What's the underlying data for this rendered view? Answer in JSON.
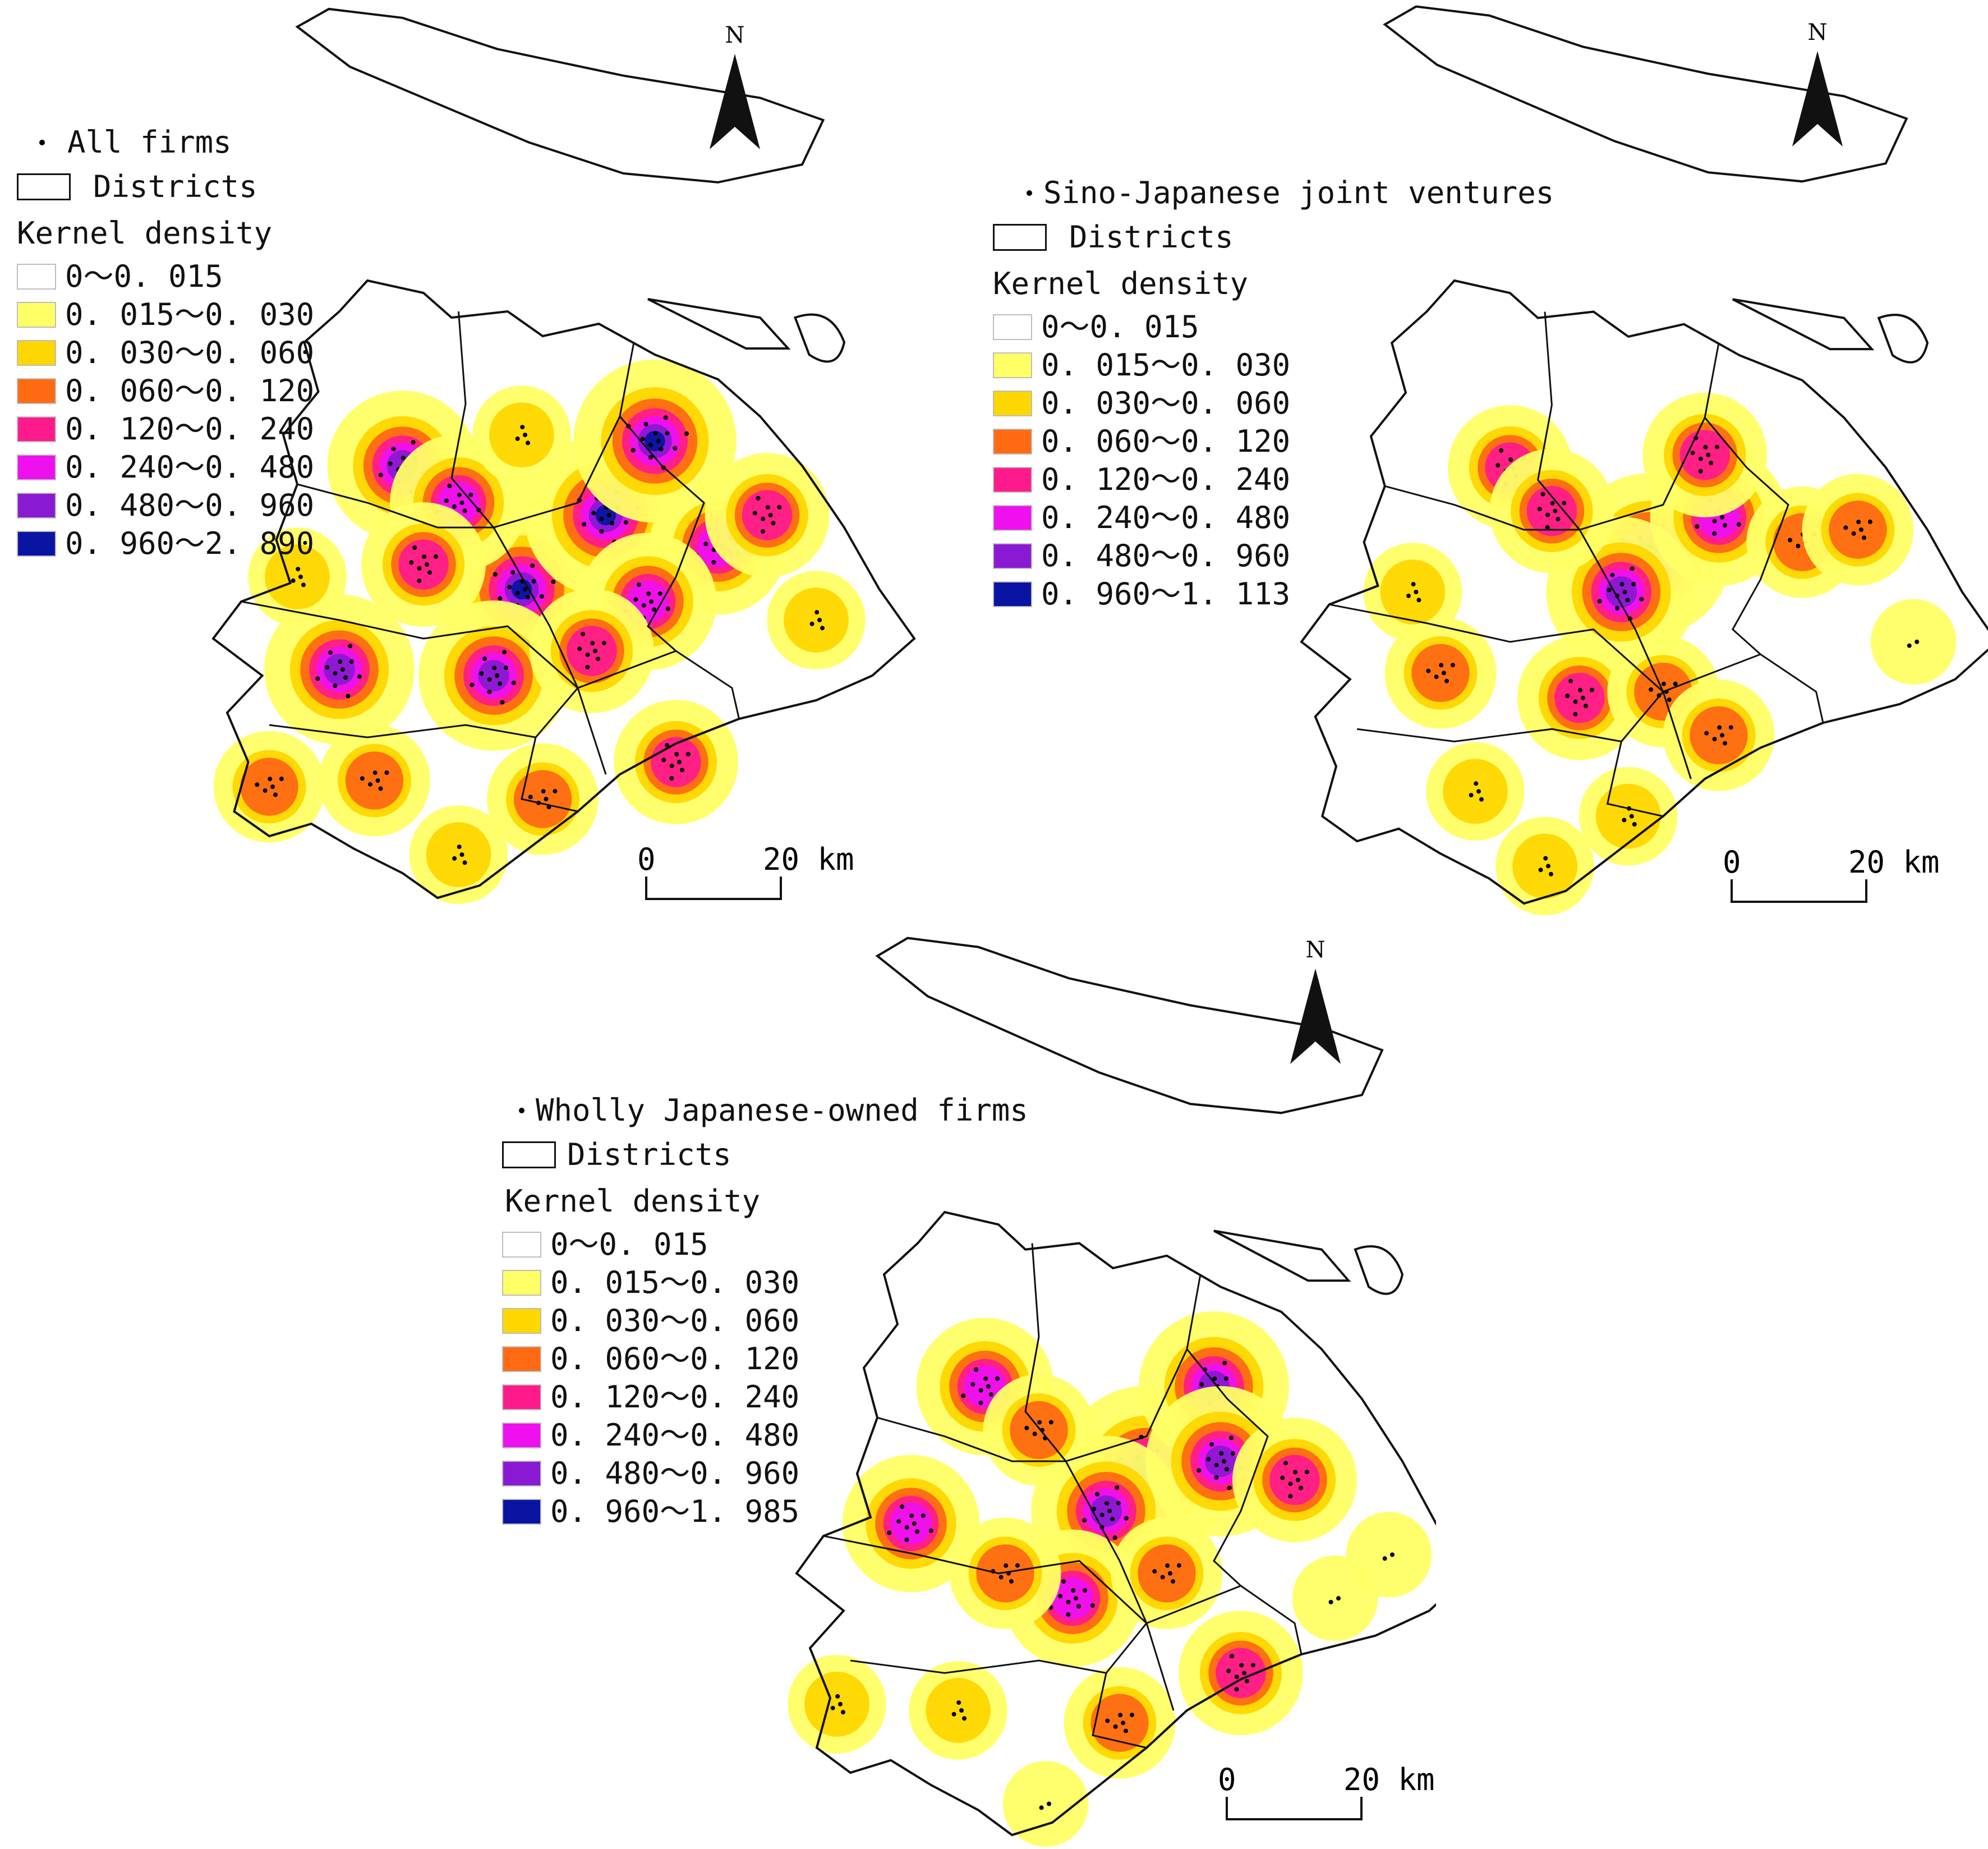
{
  "colors": {
    "classes": [
      "#ffffff",
      "#ffff66",
      "#ffd700",
      "#ff6a13",
      "#ff1a8c",
      "#ef10ef",
      "#8a19d4",
      "#0a14a3"
    ],
    "outline": "#111111",
    "points": "#000000"
  },
  "icons": {
    "north_arrow": "north-arrow-icon",
    "scale_bar": "scale-bar-icon"
  },
  "legend_common": {
    "districts_label": "Districts",
    "kernel_title": "Kernel density",
    "class_labels": [
      "0～0. 015",
      "0. 015～0. 030",
      "0. 030～0. 060",
      "0. 060～0. 120",
      "0. 120～0. 240",
      "0. 240～0. 480",
      "0. 480～0. 960"
    ]
  },
  "panels": [
    {
      "point_label": "All firms",
      "max_class_label": "0. 960～2. 890",
      "hotspots": [
        {
          "dx": 0.5,
          "dy": 0.45,
          "w": 9
        },
        {
          "dx": 0.44,
          "dy": 0.5,
          "w": 7
        },
        {
          "dx": 0.56,
          "dy": 0.38,
          "w": 7
        },
        {
          "dx": 0.63,
          "dy": 0.26,
          "w": 7
        },
        {
          "dx": 0.27,
          "dy": 0.3,
          "w": 6
        },
        {
          "dx": 0.18,
          "dy": 0.63,
          "w": 6
        },
        {
          "dx": 0.4,
          "dy": 0.64,
          "w": 6
        },
        {
          "dx": 0.72,
          "dy": 0.43,
          "w": 5
        },
        {
          "dx": 0.62,
          "dy": 0.52,
          "w": 5
        },
        {
          "dx": 0.35,
          "dy": 0.36,
          "w": 5
        },
        {
          "dx": 0.66,
          "dy": 0.78,
          "w": 4
        },
        {
          "dx": 0.79,
          "dy": 0.38,
          "w": 4
        },
        {
          "dx": 0.3,
          "dy": 0.46,
          "w": 4
        },
        {
          "dx": 0.23,
          "dy": 0.81,
          "w": 3
        },
        {
          "dx": 0.08,
          "dy": 0.82,
          "w": 3
        },
        {
          "dx": 0.54,
          "dy": 0.6,
          "w": 4
        },
        {
          "dx": 0.47,
          "dy": 0.84,
          "w": 3
        },
        {
          "dx": 0.44,
          "dy": 0.25,
          "w": 2
        },
        {
          "dx": 0.12,
          "dy": 0.48,
          "w": 2
        },
        {
          "dx": 0.86,
          "dy": 0.55,
          "w": 2
        },
        {
          "dx": 0.35,
          "dy": 0.93,
          "w": 2
        }
      ]
    },
    {
      "point_label": "Sino-Japanese joint ventures",
      "max_class_label": "0. 960～1. 113",
      "hotspots": [
        {
          "dx": 0.5,
          "dy": 0.44,
          "w": 7
        },
        {
          "dx": 0.46,
          "dy": 0.5,
          "w": 6
        },
        {
          "dx": 0.6,
          "dy": 0.38,
          "w": 5
        },
        {
          "dx": 0.58,
          "dy": 0.28,
          "w": 4
        },
        {
          "dx": 0.3,
          "dy": 0.3,
          "w": 4
        },
        {
          "dx": 0.36,
          "dy": 0.37,
          "w": 4
        },
        {
          "dx": 0.2,
          "dy": 0.63,
          "w": 3
        },
        {
          "dx": 0.4,
          "dy": 0.67,
          "w": 4
        },
        {
          "dx": 0.52,
          "dy": 0.66,
          "w": 3
        },
        {
          "dx": 0.72,
          "dy": 0.42,
          "w": 3
        },
        {
          "dx": 0.8,
          "dy": 0.4,
          "w": 3
        },
        {
          "dx": 0.6,
          "dy": 0.73,
          "w": 3
        },
        {
          "dx": 0.25,
          "dy": 0.82,
          "w": 2
        },
        {
          "dx": 0.47,
          "dy": 0.86,
          "w": 2
        },
        {
          "dx": 0.16,
          "dy": 0.5,
          "w": 2
        },
        {
          "dx": 0.88,
          "dy": 0.58,
          "w": 1
        },
        {
          "dx": 0.35,
          "dy": 0.94,
          "w": 2
        }
      ]
    },
    {
      "point_label": "Wholly Japanese-owned firms",
      "max_class_label": "0. 960～1. 985",
      "hotspots": [
        {
          "dx": 0.52,
          "dy": 0.42,
          "w": 8
        },
        {
          "dx": 0.46,
          "dy": 0.48,
          "w": 6
        },
        {
          "dx": 0.62,
          "dy": 0.28,
          "w": 6
        },
        {
          "dx": 0.63,
          "dy": 0.4,
          "w": 6
        },
        {
          "dx": 0.28,
          "dy": 0.28,
          "w": 5
        },
        {
          "dx": 0.17,
          "dy": 0.5,
          "w": 5
        },
        {
          "dx": 0.41,
          "dy": 0.62,
          "w": 5
        },
        {
          "dx": 0.74,
          "dy": 0.43,
          "w": 4
        },
        {
          "dx": 0.55,
          "dy": 0.58,
          "w": 3
        },
        {
          "dx": 0.66,
          "dy": 0.74,
          "w": 4
        },
        {
          "dx": 0.36,
          "dy": 0.35,
          "w": 3
        },
        {
          "dx": 0.31,
          "dy": 0.58,
          "w": 3
        },
        {
          "dx": 0.48,
          "dy": 0.82,
          "w": 3
        },
        {
          "dx": 0.24,
          "dy": 0.8,
          "w": 2
        },
        {
          "dx": 0.06,
          "dy": 0.79,
          "w": 2
        },
        {
          "dx": 0.8,
          "dy": 0.62,
          "w": 1
        },
        {
          "dx": 0.88,
          "dy": 0.55,
          "w": 1
        },
        {
          "dx": 0.37,
          "dy": 0.95,
          "w": 1
        }
      ]
    }
  ],
  "north_label": "N",
  "scale": {
    "zero": "0",
    "twenty": "20 km"
  }
}
